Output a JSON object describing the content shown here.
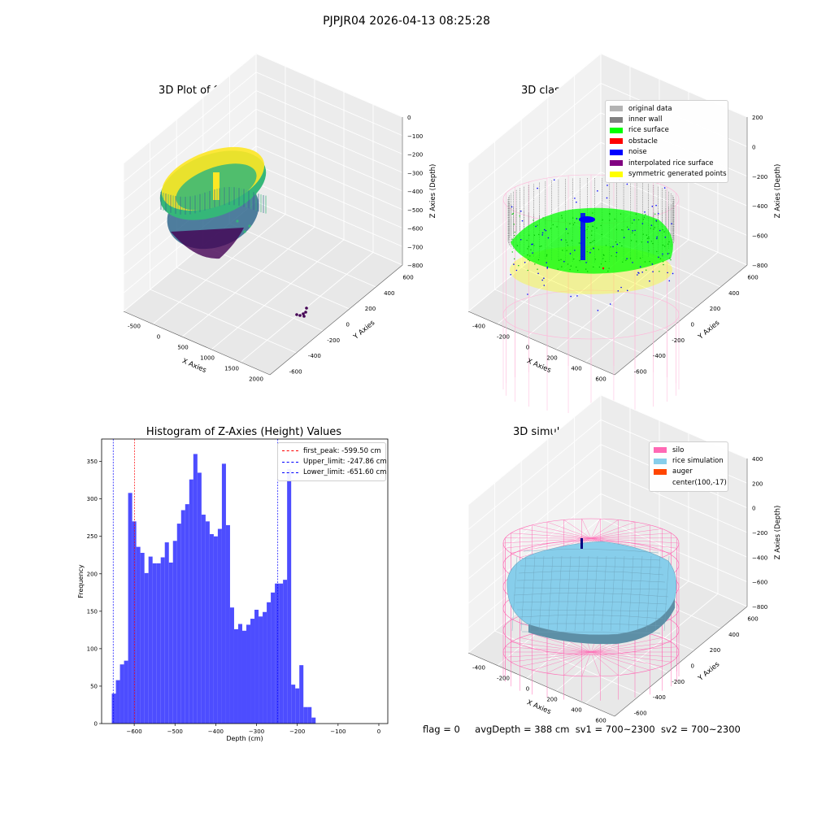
{
  "figure": {
    "suptitle": "PJPJR04 2026-04-13 08:25:28",
    "footer": {
      "flag": "flag = 0",
      "avg_depth": "avgDepth = 388 cm",
      "sv1": "sv1 = 700~2300",
      "sv2": "sv2 = 700~2300"
    }
  },
  "chart_data": [
    {
      "type": "scatter",
      "panel": "top-left",
      "title": "3D Plot of Silo Interior(row data)",
      "xlabel": "X Axies",
      "ylabel": "Y Axies",
      "zlabel": "Z Axies (Depth)",
      "xticks": [
        "-500",
        "0",
        "500",
        "1000",
        "1500",
        "2000"
      ],
      "yticks": [
        "-600",
        "-400",
        "-200",
        "0",
        "200",
        "400",
        "600"
      ],
      "zticks": [
        "0",
        "−100",
        "−200",
        "−300",
        "−400",
        "−500",
        "−600",
        "−700",
        "−800"
      ],
      "colormap": [
        "#440154",
        "#31688e",
        "#35b779",
        "#fde725"
      ]
    },
    {
      "type": "scatter",
      "panel": "top-right",
      "title": "3D classify of Silo Interior",
      "xlabel": "X Axies",
      "ylabel": "Y Axies",
      "zlabel": "Z Axies (Depth)",
      "xticks": [
        "-400",
        "-200",
        "0",
        "200",
        "400",
        "600"
      ],
      "yticks": [
        "-600",
        "-400",
        "-200",
        "0",
        "200",
        "400",
        "600"
      ],
      "zticks": [
        "200",
        "0",
        "−200",
        "−400",
        "−600",
        "−800"
      ],
      "legend_position": "top-right",
      "legend": [
        {
          "label": "original data",
          "color": "#b3b3b3"
        },
        {
          "label": "inner wall",
          "color": "#808080"
        },
        {
          "label": "rice surface",
          "color": "#00ff00"
        },
        {
          "label": "obstacle",
          "color": "#ff0000"
        },
        {
          "label": "noise",
          "color": "#0000ff"
        },
        {
          "label": "interpolated rice surface",
          "color": "#800080"
        },
        {
          "label": "symmetric generated points",
          "color": "#ffff00"
        }
      ]
    },
    {
      "type": "bar",
      "panel": "bottom-left",
      "title": "Histogram of Z-Axies (Height) Values",
      "xlabel": "Depth (cm)",
      "ylabel": "Frequency",
      "xlim": [
        -680,
        22
      ],
      "ylim": [
        0,
        380
      ],
      "xticks": [
        -600,
        -500,
        -400,
        -300,
        -200,
        -100,
        0
      ],
      "xtick_labels": [
        "−600",
        "−500",
        "−400",
        "−300",
        "−200",
        "−100",
        "0"
      ],
      "yticks": [
        0,
        50,
        100,
        150,
        200,
        250,
        300,
        350
      ],
      "bar_color": "#4d4dff",
      "bin_start": -655,
      "bin_width": 10,
      "values": [
        40,
        58,
        79,
        84,
        308,
        270,
        236,
        228,
        201,
        223,
        214,
        214,
        222,
        242,
        215,
        244,
        267,
        285,
        293,
        326,
        360,
        335,
        279,
        270,
        253,
        250,
        260,
        347,
        265,
        155,
        126,
        133,
        124,
        132,
        140,
        152,
        143,
        149,
        162,
        175,
        187,
        187,
        192,
        340,
        52,
        47,
        78,
        22,
        22,
        8
      ],
      "legend_position": "top-right",
      "legend": [
        {
          "label": "first_peak: -599.50 cm",
          "color": "#ff0000",
          "value": -599.5
        },
        {
          "label": "Upper_limit: -247.86 cm",
          "color": "#0000ff",
          "value": -247.86
        },
        {
          "label": "Lower_limit: -651.60 cm",
          "color": "#0000ff",
          "value": -651.6
        }
      ]
    },
    {
      "type": "surface",
      "panel": "bottom-right",
      "title": "3D simulation of Silo Interior",
      "xlabel": "X Axies",
      "ylabel": "Y Axies",
      "zlabel": "Z Axies (Depth)",
      "xticks": [
        "-400",
        "-200",
        "0",
        "200",
        "400",
        "600"
      ],
      "yticks": [
        "-600",
        "-400",
        "-200",
        "0",
        "200",
        "400",
        "600"
      ],
      "zticks": [
        "400",
        "200",
        "0",
        "−200",
        "−400",
        "−600",
        "−800"
      ],
      "legend_position": "top-right",
      "legend": [
        {
          "label": "silo",
          "color": "#ff69b4"
        },
        {
          "label": "rice simulation",
          "color": "#87ceeb"
        },
        {
          "label": "auger",
          "color": "#ff4500"
        },
        {
          "label": "center(100,-17)",
          "color": ""
        }
      ]
    }
  ]
}
